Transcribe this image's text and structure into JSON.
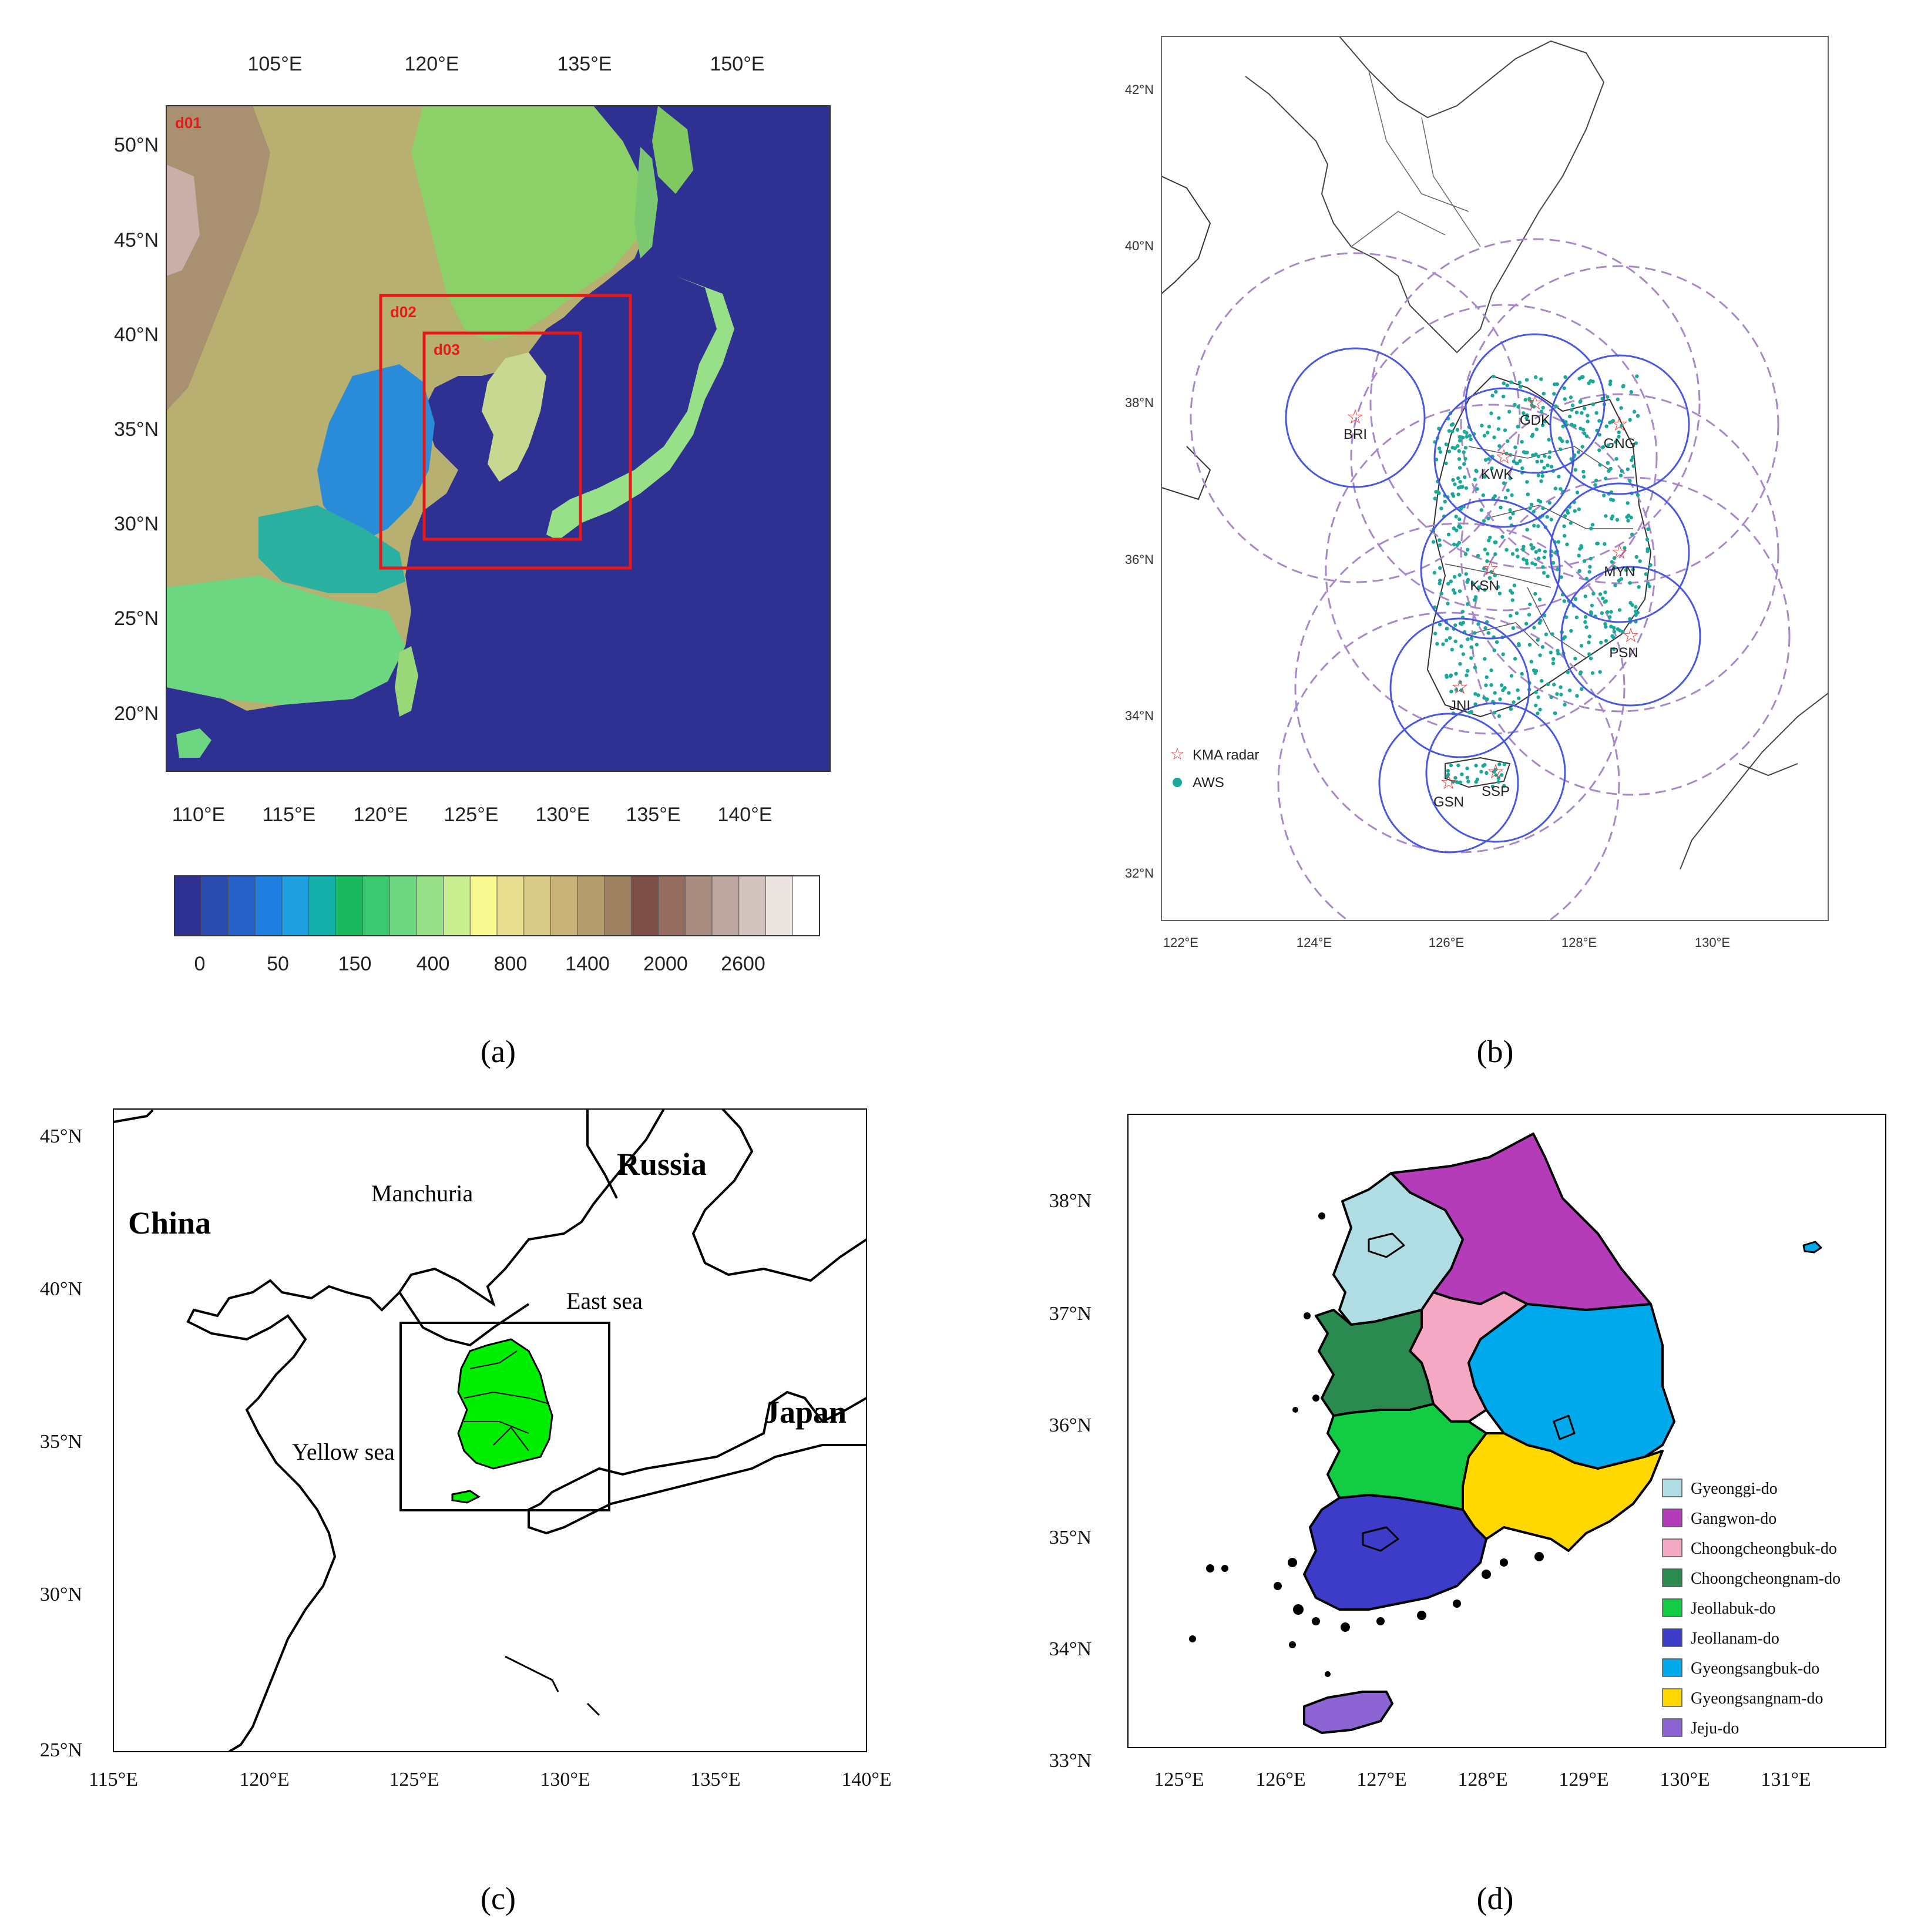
{
  "captions": {
    "a": "(a)",
    "b": "(b)",
    "c": "(c)",
    "d": "(d)"
  },
  "panel_a": {
    "top_lon_ticks": [
      "105°E",
      "120°E",
      "135°E",
      "150°E"
    ],
    "bottom_lon_ticks": [
      "110°E",
      "115°E",
      "120°E",
      "125°E",
      "130°E",
      "135°E",
      "140°E"
    ],
    "lat_ticks": [
      "50°N",
      "45°N",
      "40°N",
      "35°N",
      "30°N",
      "25°N",
      "20°N"
    ],
    "domains": [
      {
        "label": "d01",
        "color": "#e81818"
      },
      {
        "label": "d02",
        "color": "#e81818"
      },
      {
        "label": "d03",
        "color": "#e81818"
      }
    ],
    "colorbar": {
      "colors": [
        "#2e3192",
        "#2a4bb0",
        "#2460c8",
        "#1f7ee0",
        "#1ea0e0",
        "#12b0a8",
        "#1cb860",
        "#3cc870",
        "#6cd680",
        "#98e088",
        "#c8ee90",
        "#f8f890",
        "#e8e090",
        "#d8cc88",
        "#c8b478",
        "#b49c6c",
        "#9c8060",
        "#7c5048",
        "#946c60",
        "#a88c80",
        "#bca8a0",
        "#d4c4c0",
        "#ece4e0",
        "#ffffff"
      ],
      "labels": [
        "0",
        "50",
        "150",
        "400",
        "800",
        "1400",
        "2000",
        "2600"
      ]
    }
  },
  "panel_b": {
    "lon_ticks": [
      "122°E",
      "124°E",
      "126°E",
      "128°E",
      "130°E"
    ],
    "lat_ticks": [
      "42°N",
      "40°N",
      "38°N",
      "36°N",
      "34°N",
      "32°N"
    ],
    "legend": {
      "radar": "KMA radar",
      "aws": "AWS"
    },
    "stations": [
      "BRI",
      "GDK",
      "GNG",
      "KWK",
      "KSN",
      "MYN",
      "PSN",
      "JNI",
      "GSN",
      "SSP"
    ],
    "colors": {
      "radar": "#e03a3a",
      "aws": "#1aa898",
      "range": "#4a58e0",
      "dash": "#a888c8"
    }
  },
  "panel_c": {
    "lon_ticks": [
      "115°E",
      "120°E",
      "125°E",
      "130°E",
      "135°E",
      "140°E"
    ],
    "lat_ticks": [
      "45°N",
      "40°N",
      "35°N",
      "30°N",
      "25°N"
    ],
    "labels": {
      "china": "China",
      "russia": "Russia",
      "japan": "Japan",
      "manchuria": "Manchuria",
      "east_sea": "East sea",
      "yellow_sea": "Yellow sea"
    },
    "fill": "#00ee00"
  },
  "panel_d": {
    "lon_ticks": [
      "125°E",
      "126°E",
      "127°E",
      "128°E",
      "129°E",
      "130°E",
      "131°E"
    ],
    "lat_ticks": [
      "38°N",
      "37°N",
      "36°N",
      "35°N",
      "34°N",
      "33°N"
    ],
    "provinces": [
      {
        "name": "Gyeonggi-do",
        "color": "#b0dde4"
      },
      {
        "name": "Gangwon-do",
        "color": "#b43cb8"
      },
      {
        "name": "Choongcheongbuk-do",
        "color": "#f4a8c4"
      },
      {
        "name": "Choongcheongnam-do",
        "color": "#2a8a50"
      },
      {
        "name": "Jeollabuk-do",
        "color": "#12cc44"
      },
      {
        "name": "Jeollanam-do",
        "color": "#3c3cc8"
      },
      {
        "name": "Gyeongsangbuk-do",
        "color": "#00a8ec"
      },
      {
        "name": "Gyeongsangnam-do",
        "color": "#ffd800"
      },
      {
        "name": "Jeju-do",
        "color": "#8c64d4"
      }
    ]
  }
}
